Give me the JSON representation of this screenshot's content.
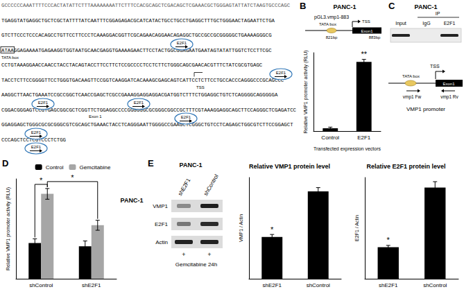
{
  "panels": [
    "A",
    "B",
    "C",
    "D",
    "E"
  ],
  "cell_line": "PANC-1",
  "panel_A": {
    "sequence": [
      "GCCCCCCAAATTTTCCCACTATATTCTTTAAAAAAAATTCTTTCCACGCAGCTCGACAGCTCGAAACGCTGGGAGTATTATCTAAGTGCCCAGC",
      "TGAGGTATGAGGCTGCTCGCTATTTTATCAATTTCGGAGAGACGCATCATACTGCCTGCCTGAGGCTTTGCTGGGAACTAGAATTCTGA",
      "GTCTTCCCTCCCACAGCCTGTTCCTTCCCTCAAAGGACGGTTCGCAGAACAGGAACAGAGGCTGCCGCCGCGGGGGCTGAAAAGGGCG",
      "ATAAGGAGAAAATGAGAAGGTGGTAATGCAACGAGGTGAAAAGAACTTCCTACTGGCGGAGAATGAATAGTATATTGGTCTCCTTCGC",
      "CCTGTAAAGGAACCAACCTACCTACAGTACCTTCCTTCTCCGCCCCTCCTCTTCTGGGCAGCGAACACGTTTCTATCGCGTGAGC",
      "TACCTCTTCCGGGGTTCCTGGGTGACAAGTTCCGGTCAAGGATCACAAAGCGAGCAGTCATTCCTCTTCCTGCCACCCAGGGCCCGCAGCCC",
      "AAGGCTTAACTGAAATCCGCCGGCTCAACCGAGCTCGCCGAAAGGAGGAGGACGATGGTCTTTCTGGAGGCTGTCTCAGGGGCAGGGGGA",
      "CGGACGGGAGTCCGTGAGCGGCGCTCGGTTCTGGAGGCCCCGGGGGGCGCGGGCGGCCGCTTTCGTAAAGGAGGCAGCTTCCAGGGCTCGAGATCC",
      "GGAGGAGCTGGGCGCGCGGGCGTCGCAGCTGAAACTACCTCAGGGAATTGGGGCCGAAGCTCGGGCTGTCCTCAGAGCTGGCGTCTTCCGGAGCT",
      "CCCAGCTCCTCGTCCCTCTGG"
    ],
    "sites": [
      "E2F1",
      "E2F1",
      "E2F1",
      "E2F1",
      "E2F1",
      "E2F1",
      "E2F1"
    ],
    "tata_box": "TATA box",
    "tss": "TSS",
    "exon": "Exon 1"
  },
  "panel_B_diagram": {
    "construct": "pGL3.vmp1-883",
    "tata_box": "TATA box",
    "tss": "TSS",
    "exon": "Exon1",
    "lengths": [
      "821bp",
      "883bp"
    ]
  },
  "panel_C": {
    "ip": "IP",
    "lanes": [
      "Input",
      "IgG",
      "E2F1"
    ],
    "bands": [
      true,
      false,
      true
    ],
    "tata_box": "TATA box",
    "tss": "TSS",
    "exon": "Exon1",
    "primers": [
      "vmp1 Fw",
      "vmp1 Rv"
    ],
    "caption": "VMP1 promoter"
  },
  "panel_E_blot": {
    "lanes": [
      "shE2F1",
      "shControl"
    ],
    "rows": [
      "VMP1",
      "E2F1",
      "Actin"
    ],
    "treatment": [
      "+",
      "+"
    ],
    "treatment_label": "Gemcitabine 24h"
  },
  "chart_data": [
    {
      "type": "bar",
      "ylabel": "Relative VMP1 promoter activity (RLU)",
      "xlabel": "Transfected expression vectors",
      "categories": [
        "Control",
        "E2F1"
      ],
      "values": [
        1,
        24.7
      ],
      "errors": [
        0.4,
        0.9
      ],
      "color": "#000000",
      "ylim": [
        0,
        28
      ],
      "tick_labels": "x",
      "annotations": [
        {
          "text": "**",
          "category": "E2F1"
        }
      ]
    },
    {
      "type": "bar",
      "ylabel": "Relative VMP1 promoter activity (RLU)",
      "categories": [
        "shControl",
        "shE2F1"
      ],
      "series": [
        {
          "name": "Control",
          "color": "#000000",
          "values": [
            10,
            9.1
          ],
          "errors": [
            1.2,
            1.5
          ]
        },
        {
          "name": "Gemcitabine",
          "color": "#a6a6a6",
          "values": [
            23.8,
            15
          ],
          "errors": [
            1.5,
            1.4
          ]
        }
      ],
      "ylim": [
        0,
        28
      ],
      "legend": "top",
      "tick_labels": "x",
      "annotations": [
        {
          "text": "*",
          "between": [
            [
              "shControl",
              "Control"
            ],
            [
              "shControl",
              "Gemcitabine"
            ]
          ]
        },
        {
          "text": "*",
          "between": [
            [
              "shControl",
              "Gemcitabine"
            ],
            [
              "shE2F1",
              "Gemcitabine"
            ]
          ]
        }
      ]
    },
    {
      "type": "bar",
      "title": "Relative VMP1 protein level",
      "ylabel": "VMP1 / Actin",
      "categories": [
        "shE2F1",
        "shControl"
      ],
      "values": [
        0.33,
        0.69
      ],
      "errors": [
        0.02,
        0.03
      ],
      "color": "#000000",
      "ylim": [
        0,
        0.8
      ],
      "tick_labels": "x",
      "annotations": [
        {
          "text": "*",
          "category": "shE2F1"
        }
      ]
    },
    {
      "type": "bar",
      "title": "Relative E2F1 protein level",
      "ylabel": "E2F1 / Actin",
      "categories": [
        "shE2F1",
        "shControl"
      ],
      "values": [
        0.53,
        1.53
      ],
      "errors": [
        0.03,
        0.1
      ],
      "color": "#000000",
      "ylim": [
        0,
        1.7
      ],
      "tick_labels": "x",
      "annotations": [
        {
          "text": "*",
          "category": "shE2F1"
        }
      ]
    }
  ]
}
